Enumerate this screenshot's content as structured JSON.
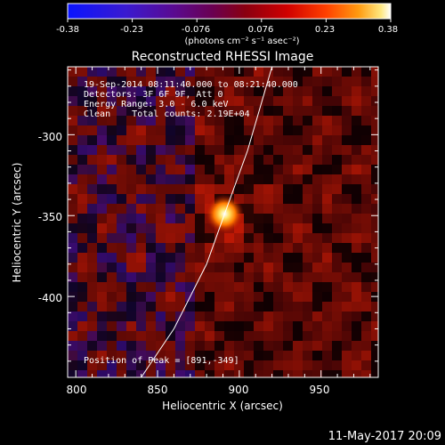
{
  "colorbar": {
    "tick_labels": [
      "-0.38",
      "-0.23",
      "-0.076",
      "0.076",
      "0.23",
      "0.38"
    ],
    "units_text": "(photons cm⁻² s⁻¹ asec⁻²)",
    "range": [
      -0.38,
      0.38
    ],
    "colors": [
      "#0a14ff",
      "#3a14c8",
      "#5a0080",
      "#6a0050",
      "#8a0010",
      "#c80000",
      "#ff3000",
      "#ff9000",
      "#ffe060",
      "#ffffff"
    ]
  },
  "plot": {
    "title": "Reconstructed RHESSI Image",
    "xlabel": "Heliocentric X (arcsec)",
    "ylabel": "Heliocentric Y (arcsec)",
    "xticks": [
      "800",
      "850",
      "900",
      "950"
    ],
    "yticks": [
      "-300",
      "-350",
      "-400"
    ],
    "xlim": [
      795,
      985
    ],
    "ylim": [
      -450,
      -258
    ]
  },
  "info": {
    "line1": "19-Sep-2014 08:11:40.000 to 08:21:40.000",
    "line2": "Detectors: 3F 6F 9F, Att 0",
    "line3": "Energy Range: 3.0 - 6.0 keV",
    "line4": "Clean    Total counts: 2.19E+04",
    "peak": "Position of Peak = [891,-349]"
  },
  "timestamp": "11-May-2017 20:09",
  "peak": {
    "x": 891,
    "y": -349
  },
  "limb_curve": [
    [
      840,
      -450
    ],
    [
      860,
      -420
    ],
    [
      880,
      -380
    ],
    [
      891,
      -349
    ],
    [
      905,
      -310
    ],
    [
      920,
      -258
    ]
  ]
}
